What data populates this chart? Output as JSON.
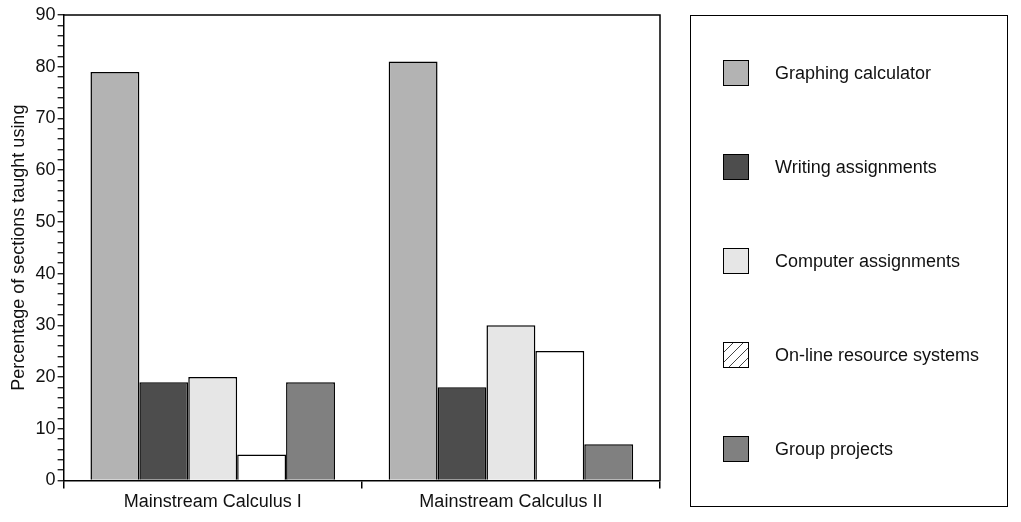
{
  "chart_data": {
    "type": "bar",
    "ylabel": "Percentage of sections taught using",
    "categories": [
      "Mainstream Calculus I",
      "Mainstream Calculus II"
    ],
    "series": [
      {
        "name": "Graphing calculator",
        "color": "#b3b3b3",
        "values": [
          79,
          81
        ]
      },
      {
        "name": "Writing assignments",
        "color": "#4d4d4d",
        "values": [
          19,
          18
        ]
      },
      {
        "name": "Computer assignments",
        "color": "#e6e6e6",
        "values": [
          20,
          30
        ]
      },
      {
        "name": "On-line resource systems",
        "color": "#ffffff",
        "values": [
          5,
          25
        ]
      },
      {
        "name": "Group projects",
        "color": "#808080",
        "values": [
          19,
          7
        ]
      }
    ],
    "ylim": [
      0,
      90
    ],
    "yticks": [
      0,
      {
        "value": 2,
        "label": null
      },
      {
        "value": 4,
        "label": null
      },
      {
        "value": 6,
        "label": null
      },
      {
        "value": 8,
        "label": null
      },
      10,
      {
        "value": 12,
        "label": null
      },
      {
        "value": 14,
        "label": null
      },
      {
        "value": 16,
        "label": null
      },
      {
        "value": 18,
        "label": null
      },
      20,
      {
        "value": 22,
        "label": null
      },
      {
        "value": 24,
        "label": null
      },
      {
        "value": 26,
        "label": null
      },
      {
        "value": 28,
        "label": null
      },
      30,
      {
        "value": 32,
        "label": null
      },
      {
        "value": 34,
        "label": null
      },
      {
        "value": 36,
        "label": null
      },
      {
        "value": 38,
        "label": null
      },
      40,
      {
        "value": 42,
        "label": null
      },
      {
        "value": 44,
        "label": null
      },
      {
        "value": 46,
        "label": null
      },
      {
        "value": 48,
        "label": null
      },
      50,
      {
        "value": 52,
        "label": null
      },
      {
        "value": 54,
        "label": null
      },
      {
        "value": 56,
        "label": null
      },
      {
        "value": 58,
        "label": null
      },
      60,
      {
        "value": 62,
        "label": null
      },
      {
        "value": 64,
        "label": null
      },
      {
        "value": 66,
        "label": null
      },
      {
        "value": 68,
        "label": null
      },
      70,
      {
        "value": 72,
        "label": null
      },
      {
        "value": 74,
        "label": null
      },
      {
        "value": 76,
        "label": null
      },
      {
        "value": 78,
        "label": null
      },
      80,
      {
        "value": 82,
        "label": null
      },
      {
        "value": 84,
        "label": null
      },
      {
        "value": 86,
        "label": null
      },
      {
        "value": 88,
        "label": null
      },
      90
    ],
    "grid": false,
    "legend": "right"
  }
}
